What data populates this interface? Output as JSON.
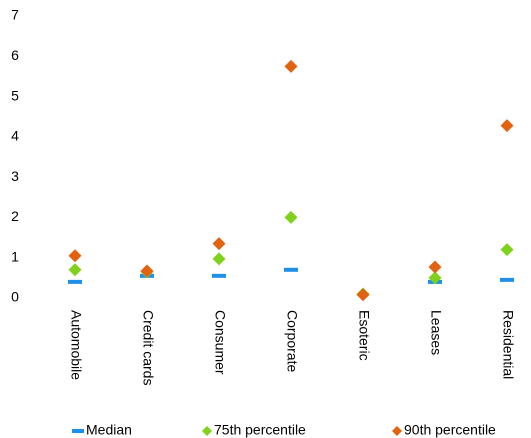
{
  "chart_data": {
    "type": "scatter",
    "categories": [
      "Automobile",
      "Credit cards",
      "Consumer",
      "Corporate",
      "Esoteric",
      "Leases",
      "Residential"
    ],
    "series": [
      {
        "name": "Median",
        "color": "#1f8fe8",
        "marker": "dash",
        "values": [
          0.4,
          0.55,
          0.55,
          0.7,
          null,
          0.4,
          0.45
        ]
      },
      {
        "name": "75th percentile",
        "color": "#7fd11b",
        "marker": "diamond",
        "values": [
          0.7,
          0.65,
          0.97,
          2.0,
          0.1,
          0.5,
          1.2
        ]
      },
      {
        "name": "90th percentile",
        "color": "#e2620f",
        "marker": "diamond",
        "values": [
          1.05,
          0.67,
          1.35,
          5.75,
          0.08,
          0.77,
          4.28
        ]
      }
    ],
    "ylim": [
      0,
      7
    ],
    "yticks": [
      0,
      1,
      2,
      3,
      4,
      5,
      6,
      7
    ],
    "grid": false,
    "legend": "bottom"
  }
}
